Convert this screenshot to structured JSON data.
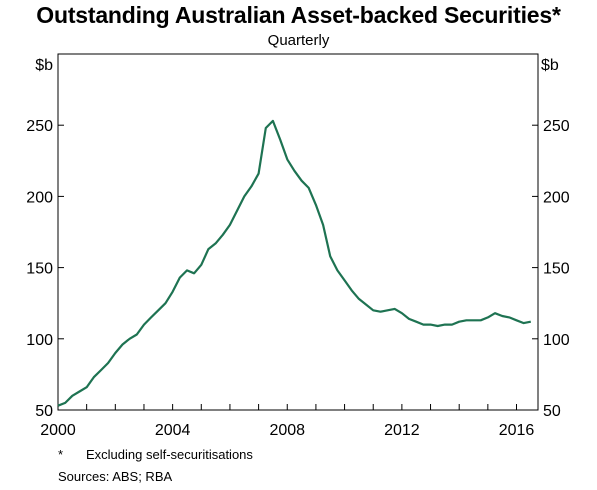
{
  "chart_data": {
    "type": "line",
    "title": "Outstanding Australian Asset-backed Securities*",
    "subtitle": "Quarterly",
    "ylabel_left": "$b",
    "ylabel_right": "$b",
    "xlim": [
      2000,
      2016.75
    ],
    "ylim": [
      50,
      300
    ],
    "x_ticks": [
      2000,
      2004,
      2008,
      2012,
      2016
    ],
    "y_ticks": [
      50,
      100,
      150,
      200,
      250
    ],
    "grid": false,
    "line_color": "#1e7352",
    "series": [
      {
        "x": [
          2000.0,
          2000.25,
          2000.5,
          2000.75,
          2001.0,
          2001.25,
          2001.5,
          2001.75,
          2002.0,
          2002.25,
          2002.5,
          2002.75,
          2003.0,
          2003.25,
          2003.5,
          2003.75,
          2004.0,
          2004.25,
          2004.5,
          2004.75,
          2005.0,
          2005.25,
          2005.5,
          2005.75,
          2006.0,
          2006.25,
          2006.5,
          2006.75,
          2007.0,
          2007.25,
          2007.5,
          2007.75,
          2008.0,
          2008.25,
          2008.5,
          2008.75,
          2009.0,
          2009.25,
          2009.5,
          2009.75,
          2010.0,
          2010.25,
          2010.5,
          2010.75,
          2011.0,
          2011.25,
          2011.5,
          2011.75,
          2012.0,
          2012.25,
          2012.5,
          2012.75,
          2013.0,
          2013.25,
          2013.5,
          2013.75,
          2014.0,
          2014.25,
          2014.5,
          2014.75,
          2015.0,
          2015.25,
          2015.5,
          2015.75,
          2016.0,
          2016.25,
          2016.5
        ],
        "y": [
          53,
          55,
          60,
          63,
          66,
          73,
          78,
          83,
          90,
          96,
          100,
          103,
          110,
          115,
          120,
          125,
          133,
          143,
          148,
          146,
          152,
          163,
          167,
          173,
          180,
          190,
          200,
          207,
          216,
          248,
          253,
          240,
          226,
          218,
          211,
          206,
          194,
          180,
          158,
          148,
          141,
          134,
          128,
          124,
          120,
          119,
          120,
          121,
          118,
          114,
          112,
          110,
          110,
          109,
          110,
          110,
          112,
          113,
          113,
          113,
          115,
          118,
          116,
          115,
          113,
          111,
          112
        ]
      }
    ],
    "footnote_marker": "*",
    "footnote_text": "Excluding self-securitisations",
    "sources": "Sources:   ABS; RBA"
  }
}
